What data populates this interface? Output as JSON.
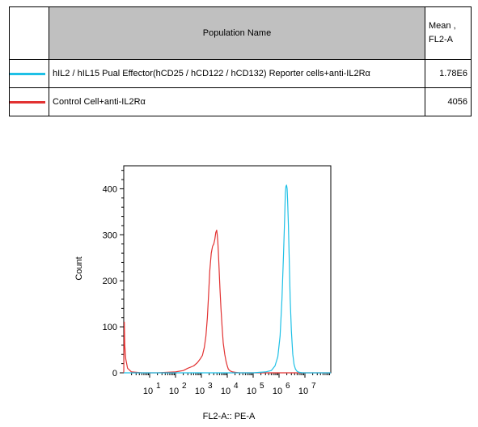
{
  "legend": {
    "header_name": "Population Name",
    "header_mean": "Mean ,\nFL2-A",
    "rows": [
      {
        "color": "#1ec0e6",
        "name": "hIL2 / hIL15 Pual Effector(hCD25 / hCD122 / hCD132) Reporter cells+anti-IL2Rα",
        "value": "1.78E6"
      },
      {
        "color": "#e23232",
        "name": "Control Cell+anti-IL2Rα",
        "value": "4056"
      }
    ]
  },
  "chart_data": {
    "type": "line",
    "xlabel": "FL2-A:: PE-A",
    "ylabel": "Count",
    "xscale": "log",
    "xlim": [
      1,
      100000000
    ],
    "ylim": [
      0,
      450
    ],
    "yticks": [
      0,
      100,
      200,
      300,
      400
    ],
    "xtick_labels": [
      {
        "base": "10",
        "exp": "1",
        "value": 10
      },
      {
        "base": "10",
        "exp": "2",
        "value": 100
      },
      {
        "base": "10",
        "exp": "3",
        "value": 1000
      },
      {
        "base": "10",
        "exp": "4",
        "value": 10000
      },
      {
        "base": "10",
        "exp": "5",
        "value": 100000
      },
      {
        "base": "10",
        "exp": "6",
        "value": 1000000
      },
      {
        "base": "10",
        "exp": "7",
        "value": 10000000
      }
    ],
    "grid": false,
    "series": [
      {
        "color": "#e23232",
        "x": [
          1.0,
          1.05,
          1.1,
          1.2,
          1.4,
          2,
          5,
          20,
          100,
          200,
          300,
          500,
          700,
          900,
          1100,
          1300,
          1500,
          1700,
          1900,
          2100,
          2400,
          2700,
          3000,
          3300,
          3600,
          3900,
          4100,
          4300,
          4500,
          4800,
          5200,
          5700,
          6300,
          7000,
          8000,
          9000,
          10000,
          11000,
          13000,
          16000,
          20000,
          30000,
          100000,
          1000000,
          100000000
        ],
        "y": [
          0,
          110,
          60,
          30,
          10,
          2,
          0,
          0,
          2,
          5,
          10,
          15,
          22,
          30,
          38,
          55,
          80,
          120,
          170,
          220,
          260,
          275,
          280,
          290,
          305,
          310,
          300,
          285,
          265,
          230,
          185,
          140,
          100,
          65,
          40,
          25,
          15,
          8,
          4,
          2,
          1,
          0,
          0,
          0,
          0
        ]
      },
      {
        "color": "#1ec0e6",
        "x": [
          1,
          100000,
          300000,
          500000,
          700000,
          900000,
          1100000,
          1300000,
          1500000,
          1650000,
          1750000,
          1850000,
          1950000,
          2050000,
          2150000,
          2300000,
          2500000,
          2700000,
          3000000,
          3400000,
          3800000,
          4300000,
          5000000,
          6000000,
          8000000,
          12000000,
          100000000
        ],
        "y": [
          0,
          0,
          2,
          5,
          15,
          35,
          80,
          160,
          260,
          340,
          390,
          405,
          408,
          400,
          375,
          320,
          240,
          160,
          90,
          40,
          18,
          8,
          3,
          1,
          0,
          0,
          0
        ]
      }
    ]
  }
}
